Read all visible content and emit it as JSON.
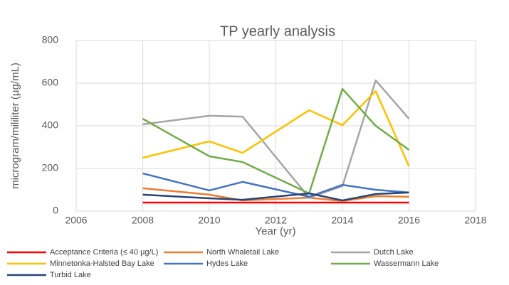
{
  "chart_data": {
    "type": "line",
    "title": "TP yearly analysis",
    "x_label": "Year (yr)",
    "y_label": "microgram/mililiter (µg/mL)",
    "x": [
      2008,
      2010,
      2011,
      2013,
      2014,
      2015,
      2016
    ],
    "xlim": [
      2006,
      2018
    ],
    "xticks": [
      2006,
      2008,
      2010,
      2012,
      2014,
      2016,
      2018
    ],
    "ylim": [
      0,
      800
    ],
    "yticks": [
      0,
      200,
      400,
      600,
      800
    ],
    "grid": true,
    "legend": "bottom",
    "series": [
      {
        "name": "Acceptance Criteria (≤ 40 µg/L)",
        "color": "#ff0000",
        "values": [
          40,
          40,
          40,
          40,
          40,
          40,
          40
        ]
      },
      {
        "name": "North Whaletail Lake",
        "color": "#ed7d31",
        "values": [
          107,
          77,
          50,
          63,
          47,
          70,
          67
        ]
      },
      {
        "name": "Dutch Lake",
        "color": "#a5a5a5",
        "values": [
          407,
          447,
          443,
          63,
          117,
          613,
          433
        ]
      },
      {
        "name": "Minnetonka-Halsted Bay Lake",
        "color": "#ffc000",
        "values": [
          250,
          327,
          273,
          473,
          403,
          563,
          210
        ]
      },
      {
        "name": "Hydes Lake",
        "color": "#4472c4",
        "values": [
          177,
          97,
          137,
          67,
          123,
          100,
          87
        ]
      },
      {
        "name": "Wassermann Lake",
        "color": "#70ad47",
        "values": [
          433,
          257,
          230,
          83,
          573,
          400,
          287
        ]
      },
      {
        "name": "Turbid Lake",
        "color": "#264478",
        "values": [
          77,
          60,
          53,
          83,
          50,
          80,
          87
        ]
      }
    ]
  }
}
